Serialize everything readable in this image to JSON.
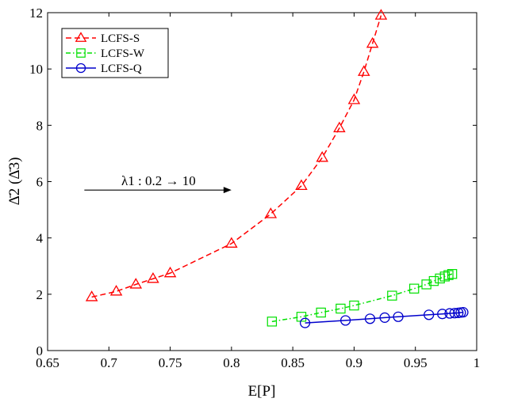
{
  "chart_data": {
    "type": "line",
    "xlabel": "E[P]",
    "ylabel": "Δ̄2 (Δ̄3)",
    "xlim": [
      0.65,
      1.0
    ],
    "ylim": [
      0,
      12
    ],
    "xticks": [
      0.65,
      0.7,
      0.75,
      0.8,
      0.85,
      0.9,
      0.95,
      1.0
    ],
    "xtick_labels": [
      "0.65",
      "0.7",
      "0.75",
      "0.8",
      "0.85",
      "0.9",
      "0.95",
      "1"
    ],
    "yticks": [
      0,
      2,
      4,
      6,
      8,
      10,
      12
    ],
    "ytick_labels": [
      "0",
      "2",
      "4",
      "6",
      "8",
      "10",
      "12"
    ],
    "grid": false,
    "legend_position": "top-left",
    "annotation": {
      "text": "λ1 : 0.2 → 10",
      "arrow_from": [
        0.68,
        5.7
      ],
      "arrow_to": [
        0.8,
        5.7
      ]
    },
    "series": [
      {
        "name": "LCFS-S",
        "color": "#ff0000",
        "line_style": "dashed",
        "marker": "triangle",
        "x": [
          0.686,
          0.706,
          0.722,
          0.736,
          0.75,
          0.8,
          0.832,
          0.857,
          0.874,
          0.888,
          0.9,
          0.908,
          0.915,
          0.922
        ],
        "y": [
          1.9,
          2.1,
          2.35,
          2.55,
          2.75,
          3.8,
          4.85,
          5.85,
          6.85,
          7.9,
          8.9,
          9.9,
          10.9,
          11.9
        ]
      },
      {
        "name": "LCFS-W",
        "color": "#00e000",
        "line_style": "dash-dot",
        "marker": "square",
        "x": [
          0.833,
          0.857,
          0.873,
          0.889,
          0.9,
          0.931,
          0.949,
          0.959,
          0.965,
          0.97,
          0.974,
          0.977,
          0.98
        ],
        "y": [
          1.03,
          1.2,
          1.35,
          1.49,
          1.6,
          1.95,
          2.2,
          2.35,
          2.47,
          2.56,
          2.63,
          2.68,
          2.72
        ]
      },
      {
        "name": "LCFS-Q",
        "color": "#0000cc",
        "line_style": "solid",
        "marker": "circle",
        "x": [
          0.86,
          0.893,
          0.913,
          0.925,
          0.936,
          0.961,
          0.972,
          0.978,
          0.982,
          0.985,
          0.987,
          0.989
        ],
        "y": [
          0.98,
          1.07,
          1.13,
          1.17,
          1.2,
          1.27,
          1.3,
          1.32,
          1.33,
          1.34,
          1.35,
          1.36
        ]
      }
    ]
  }
}
